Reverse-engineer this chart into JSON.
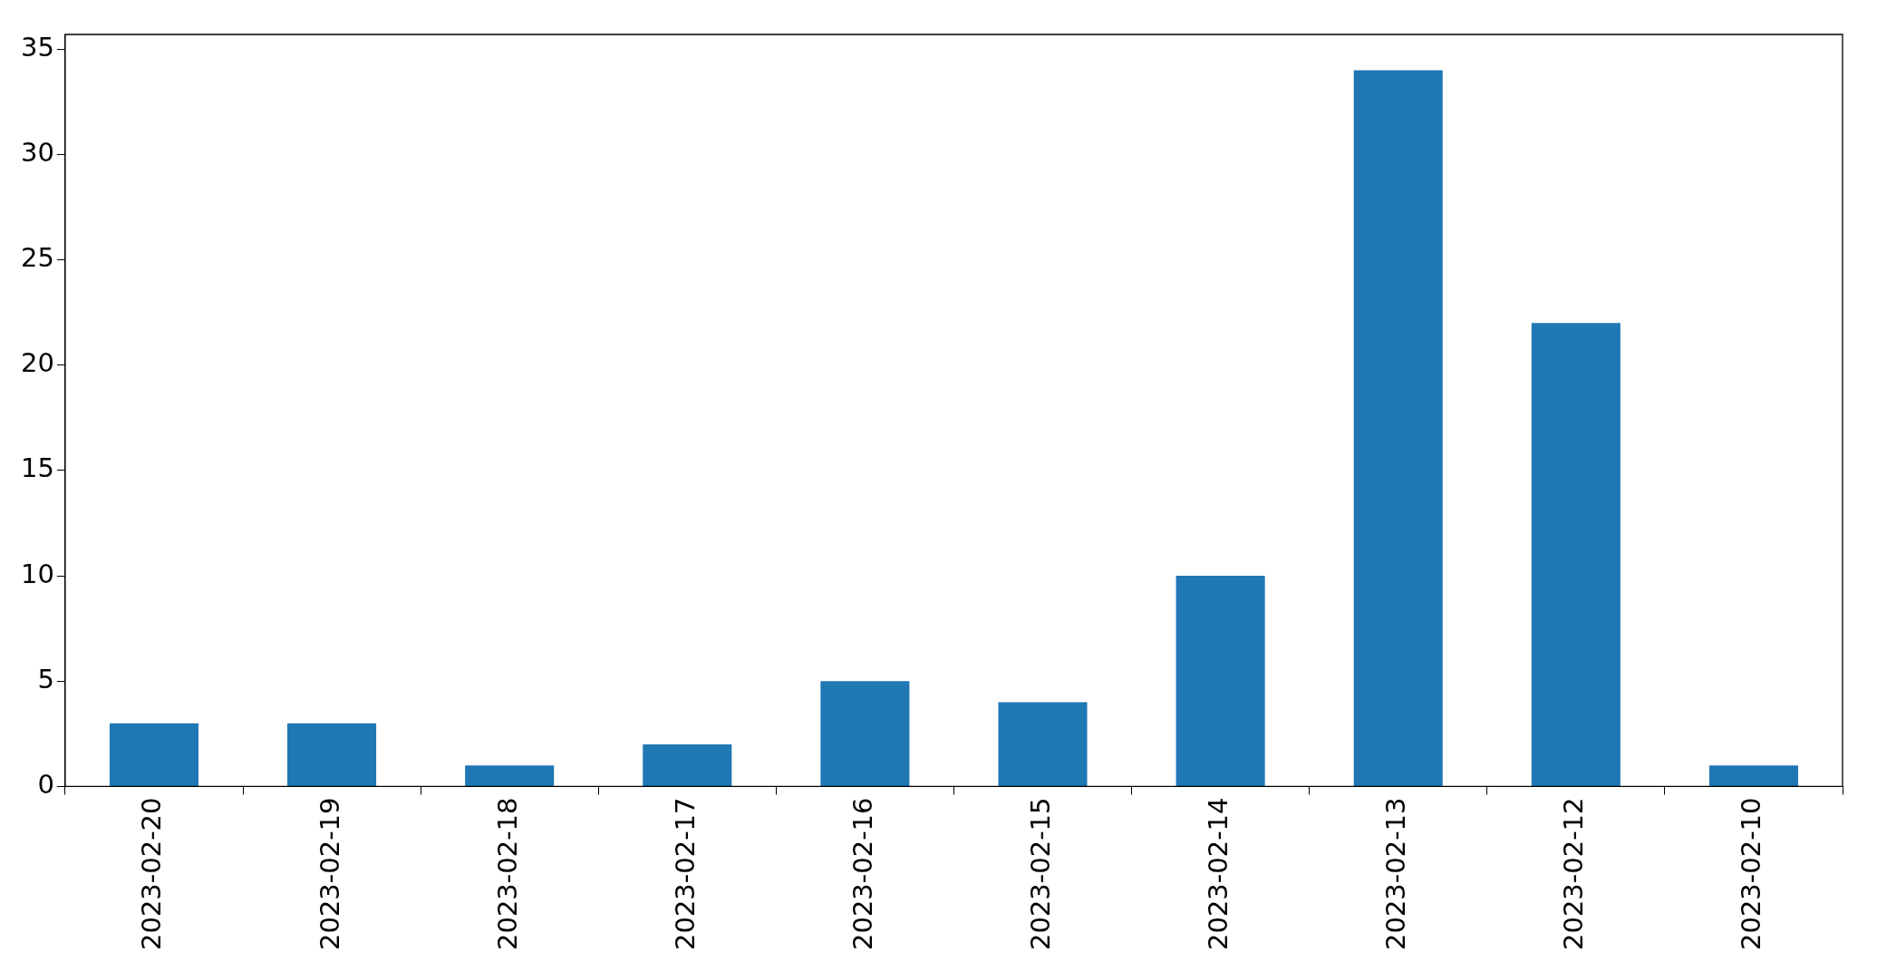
{
  "chart_data": {
    "type": "bar",
    "categories": [
      "2023-02-20",
      "2023-02-19",
      "2023-02-18",
      "2023-02-17",
      "2023-02-16",
      "2023-02-15",
      "2023-02-14",
      "2023-02-13",
      "2023-02-12",
      "2023-02-10"
    ],
    "values": [
      3,
      3,
      1,
      2,
      5,
      4,
      10,
      34,
      22,
      1
    ],
    "color": "#1f77b4",
    "ylim": [
      0,
      35.7
    ],
    "yticks": [
      0,
      5,
      10,
      15,
      20,
      25,
      30,
      35
    ],
    "grid": false,
    "legend": false
  }
}
